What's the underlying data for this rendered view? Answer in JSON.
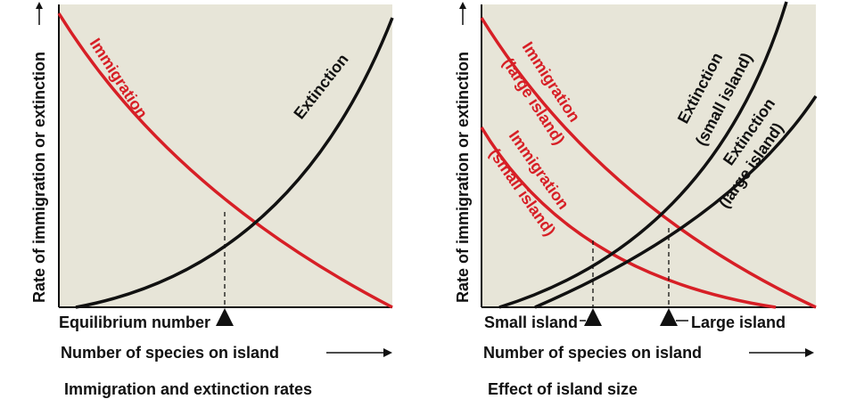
{
  "panels": [
    {
      "y_axis_label": "Rate of immigration or extinction",
      "x_axis_label": "Number of species on island",
      "curve_labels": [
        "Immigration",
        "Extinction"
      ],
      "marker_labels": [
        "Equilibrium number"
      ],
      "caption": "Immigration and extinction rates"
    },
    {
      "y_axis_label": "Rate of immigration or extinction",
      "x_axis_label": "Number of species on island",
      "curve_labels": [
        "Immigration",
        "(large island)",
        "Immigration",
        "(small island)",
        "Extinction",
        "(small island)",
        "Extinction",
        "(large island)"
      ],
      "marker_labels": [
        "Small island",
        "Large island"
      ],
      "caption": "Effect of island size"
    }
  ]
}
